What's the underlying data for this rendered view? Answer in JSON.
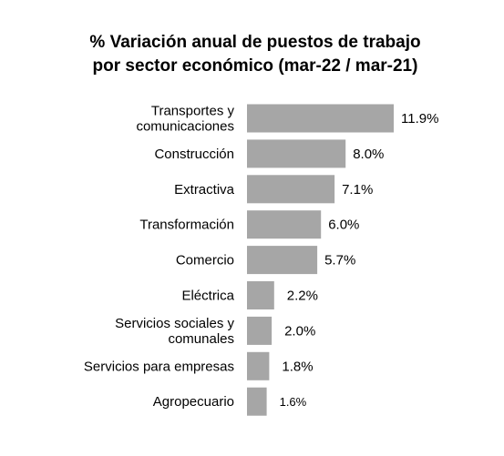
{
  "chart_data": {
    "type": "bar",
    "orientation": "horizontal",
    "title_lines": [
      "% Variación anual de puestos de trabajo",
      "por sector económico (mar-22 / mar-21)"
    ],
    "categories": [
      [
        "Transportes y",
        "comunicaciones"
      ],
      [
        "Construcción"
      ],
      [
        "Extractiva"
      ],
      [
        "Transformación"
      ],
      [
        "Comercio"
      ],
      [
        "Eléctrica"
      ],
      [
        "Servicios sociales y",
        "comunales"
      ],
      [
        "Servicios para empresas"
      ],
      [
        "Agropecuario"
      ]
    ],
    "values": [
      11.9,
      8.0,
      7.1,
      6.0,
      5.7,
      2.2,
      2.0,
      1.8,
      1.6
    ],
    "data_labels": [
      "11.9%",
      "8.0%",
      "7.1%",
      "6.0%",
      "5.7%",
      "2.2%",
      "2.0%",
      "1.8%",
      "1.6%"
    ],
    "xlim": [
      0,
      11.9
    ],
    "grid": false,
    "legend": "none",
    "bar_color": "#a6a6a6"
  }
}
